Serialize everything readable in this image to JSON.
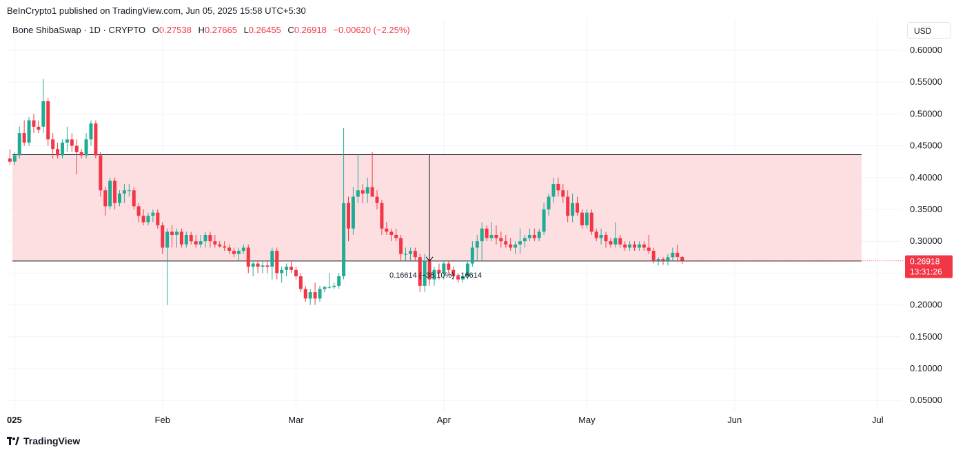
{
  "header": {
    "published": "BeInCrypto1 published on TradingView.com, Jun 05, 2025 15:58 UTC+5:30"
  },
  "legend": {
    "symbol": "Bone ShibaSwap · 1D · CRYPTO",
    "o_label": "O",
    "o_value": "0.27538",
    "h_label": "H",
    "h_value": "0.27665",
    "l_label": "L",
    "l_value": "0.26455",
    "c_label": "C",
    "c_value": "0.26918",
    "change": "−0.00620 (−2.25%)"
  },
  "currency_button": "USD",
  "footer": {
    "brand": "TradingView"
  },
  "price_tag": {
    "value": "0.26918",
    "countdown": "13:31:26"
  },
  "measure_label": "0.16614 (−38.10%) −16614",
  "colors": {
    "up": "#22ab94",
    "down": "#f23645",
    "zone": "#fddfe2",
    "grid": "#f0f3fa"
  },
  "chart_data": {
    "type": "candlestick",
    "title": "Bone ShibaSwap · 1D · CRYPTO",
    "ylim": [
      0.05,
      0.6
    ],
    "y_ticks": [
      "0.60000",
      "0.55000",
      "0.50000",
      "0.45000",
      "0.40000",
      "0.35000",
      "0.30000",
      "0.25000",
      "0.20000",
      "0.15000",
      "0.10000",
      "0.05000"
    ],
    "y_tick_values": [
      0.6,
      0.55,
      0.5,
      0.45,
      0.4,
      0.35,
      0.3,
      0.25,
      0.2,
      0.15,
      0.1,
      0.05
    ],
    "x_ticks": [
      "025",
      "Feb",
      "Mar",
      "Apr",
      "May",
      "Jun",
      "Jul"
    ],
    "x_tick_days": [
      1,
      32,
      60,
      91,
      121,
      152,
      182
    ],
    "zone": {
      "top": 0.436,
      "bottom": 0.269,
      "start_day": 0,
      "end_day": 177
    },
    "measure": {
      "day": 88,
      "from": 0.436,
      "to": 0.269
    },
    "last_price": 0.26918,
    "candles": [
      [
        0,
        0.43,
        0.445,
        0.42,
        0.425
      ],
      [
        1,
        0.425,
        0.44,
        0.42,
        0.435
      ],
      [
        2,
        0.435,
        0.48,
        0.43,
        0.47
      ],
      [
        3,
        0.47,
        0.49,
        0.45,
        0.455
      ],
      [
        4,
        0.455,
        0.495,
        0.45,
        0.49
      ],
      [
        5,
        0.49,
        0.5,
        0.47,
        0.48
      ],
      [
        6,
        0.48,
        0.49,
        0.47,
        0.475
      ],
      [
        7,
        0.48,
        0.555,
        0.47,
        0.52
      ],
      [
        8,
        0.52,
        0.525,
        0.45,
        0.46
      ],
      [
        9,
        0.46,
        0.47,
        0.43,
        0.445
      ],
      [
        10,
        0.445,
        0.455,
        0.43,
        0.435
      ],
      [
        11,
        0.435,
        0.46,
        0.43,
        0.455
      ],
      [
        12,
        0.455,
        0.48,
        0.44,
        0.46
      ],
      [
        13,
        0.46,
        0.47,
        0.44,
        0.45
      ],
      [
        14,
        0.45,
        0.46,
        0.405,
        0.44
      ],
      [
        15,
        0.44,
        0.445,
        0.43,
        0.435
      ],
      [
        16,
        0.435,
        0.47,
        0.43,
        0.46
      ],
      [
        17,
        0.46,
        0.49,
        0.45,
        0.485
      ],
      [
        18,
        0.485,
        0.49,
        0.43,
        0.435
      ],
      [
        19,
        0.435,
        0.44,
        0.37,
        0.38
      ],
      [
        20,
        0.38,
        0.385,
        0.34,
        0.355
      ],
      [
        21,
        0.355,
        0.4,
        0.35,
        0.395
      ],
      [
        22,
        0.395,
        0.4,
        0.35,
        0.36
      ],
      [
        23,
        0.36,
        0.38,
        0.355,
        0.375
      ],
      [
        24,
        0.375,
        0.39,
        0.36,
        0.38
      ],
      [
        25,
        0.38,
        0.39,
        0.37,
        0.38
      ],
      [
        26,
        0.38,
        0.385,
        0.35,
        0.355
      ],
      [
        27,
        0.355,
        0.36,
        0.33,
        0.34
      ],
      [
        28,
        0.34,
        0.35,
        0.325,
        0.33
      ],
      [
        29,
        0.33,
        0.345,
        0.325,
        0.34
      ],
      [
        30,
        0.34,
        0.35,
        0.33,
        0.345
      ],
      [
        31,
        0.345,
        0.35,
        0.32,
        0.325
      ],
      [
        32,
        0.325,
        0.33,
        0.28,
        0.29
      ],
      [
        33,
        0.29,
        0.32,
        0.2,
        0.315
      ],
      [
        34,
        0.315,
        0.325,
        0.29,
        0.31
      ],
      [
        35,
        0.31,
        0.32,
        0.29,
        0.315
      ],
      [
        36,
        0.315,
        0.32,
        0.29,
        0.295
      ],
      [
        37,
        0.295,
        0.315,
        0.29,
        0.31
      ],
      [
        38,
        0.31,
        0.315,
        0.295,
        0.3
      ],
      [
        39,
        0.3,
        0.31,
        0.29,
        0.295
      ],
      [
        40,
        0.295,
        0.31,
        0.29,
        0.3
      ],
      [
        41,
        0.3,
        0.315,
        0.29,
        0.31
      ],
      [
        42,
        0.31,
        0.315,
        0.29,
        0.3
      ],
      [
        43,
        0.3,
        0.31,
        0.29,
        0.295
      ],
      [
        44,
        0.295,
        0.3,
        0.29,
        0.292
      ],
      [
        45,
        0.292,
        0.3,
        0.285,
        0.29
      ],
      [
        46,
        0.29,
        0.295,
        0.28,
        0.285
      ],
      [
        47,
        0.285,
        0.29,
        0.275,
        0.28
      ],
      [
        48,
        0.28,
        0.29,
        0.27,
        0.285
      ],
      [
        49,
        0.285,
        0.295,
        0.28,
        0.29
      ],
      [
        50,
        0.29,
        0.295,
        0.25,
        0.26
      ],
      [
        51,
        0.26,
        0.27,
        0.245,
        0.265
      ],
      [
        52,
        0.265,
        0.27,
        0.25,
        0.26
      ],
      [
        53,
        0.26,
        0.27,
        0.25,
        0.262
      ],
      [
        54,
        0.262,
        0.27,
        0.25,
        0.26
      ],
      [
        55,
        0.26,
        0.29,
        0.24,
        0.285
      ],
      [
        56,
        0.285,
        0.29,
        0.24,
        0.25
      ],
      [
        57,
        0.25,
        0.26,
        0.235,
        0.255
      ],
      [
        58,
        0.255,
        0.265,
        0.245,
        0.26
      ],
      [
        59,
        0.26,
        0.27,
        0.25,
        0.255
      ],
      [
        60,
        0.255,
        0.26,
        0.24,
        0.245
      ],
      [
        61,
        0.245,
        0.25,
        0.22,
        0.225
      ],
      [
        62,
        0.225,
        0.23,
        0.205,
        0.21
      ],
      [
        63,
        0.21,
        0.225,
        0.2,
        0.22
      ],
      [
        64,
        0.22,
        0.235,
        0.2,
        0.21
      ],
      [
        65,
        0.21,
        0.23,
        0.205,
        0.225
      ],
      [
        66,
        0.225,
        0.23,
        0.22,
        0.228
      ],
      [
        67,
        0.228,
        0.25,
        0.225,
        0.228
      ],
      [
        68,
        0.228,
        0.235,
        0.225,
        0.23
      ],
      [
        69,
        0.23,
        0.25,
        0.225,
        0.245
      ],
      [
        70,
        0.245,
        0.478,
        0.24,
        0.36
      ],
      [
        71,
        0.36,
        0.37,
        0.3,
        0.32
      ],
      [
        72,
        0.32,
        0.385,
        0.31,
        0.37
      ],
      [
        73,
        0.37,
        0.436,
        0.36,
        0.38
      ],
      [
        74,
        0.38,
        0.39,
        0.36,
        0.375
      ],
      [
        75,
        0.375,
        0.4,
        0.36,
        0.385
      ],
      [
        76,
        0.385,
        0.44,
        0.37,
        0.37
      ],
      [
        77,
        0.37,
        0.38,
        0.35,
        0.36
      ],
      [
        78,
        0.36,
        0.365,
        0.31,
        0.32
      ],
      [
        79,
        0.32,
        0.33,
        0.31,
        0.315
      ],
      [
        80,
        0.315,
        0.32,
        0.3,
        0.31
      ],
      [
        81,
        0.31,
        0.32,
        0.3,
        0.305
      ],
      [
        82,
        0.305,
        0.31,
        0.27,
        0.28
      ],
      [
        83,
        0.28,
        0.29,
        0.27,
        0.28
      ],
      [
        84,
        0.28,
        0.29,
        0.27,
        0.285
      ],
      [
        85,
        0.285,
        0.29,
        0.27,
        0.275
      ],
      [
        86,
        0.275,
        0.28,
        0.22,
        0.23
      ],
      [
        87,
        0.23,
        0.28,
        0.22,
        0.27
      ],
      [
        88,
        0.27,
        0.28,
        0.23,
        0.24
      ],
      [
        89,
        0.24,
        0.26,
        0.23,
        0.255
      ],
      [
        90,
        0.255,
        0.265,
        0.24,
        0.25
      ],
      [
        91,
        0.25,
        0.27,
        0.24,
        0.265
      ],
      [
        92,
        0.265,
        0.27,
        0.25,
        0.255
      ],
      [
        93,
        0.255,
        0.26,
        0.24,
        0.245
      ],
      [
        94,
        0.245,
        0.25,
        0.235,
        0.24
      ],
      [
        95,
        0.24,
        0.25,
        0.235,
        0.245
      ],
      [
        96,
        0.245,
        0.27,
        0.24,
        0.265
      ],
      [
        97,
        0.265,
        0.3,
        0.26,
        0.29
      ],
      [
        98,
        0.29,
        0.31,
        0.27,
        0.3
      ],
      [
        99,
        0.3,
        0.33,
        0.27,
        0.32
      ],
      [
        100,
        0.32,
        0.325,
        0.3,
        0.305
      ],
      [
        101,
        0.305,
        0.33,
        0.3,
        0.31
      ],
      [
        102,
        0.31,
        0.325,
        0.295,
        0.305
      ],
      [
        103,
        0.305,
        0.315,
        0.29,
        0.3
      ],
      [
        104,
        0.3,
        0.31,
        0.29,
        0.295
      ],
      [
        105,
        0.295,
        0.305,
        0.285,
        0.29
      ],
      [
        106,
        0.29,
        0.3,
        0.28,
        0.295
      ],
      [
        107,
        0.295,
        0.32,
        0.28,
        0.3
      ],
      [
        108,
        0.3,
        0.31,
        0.29,
        0.305
      ],
      [
        109,
        0.305,
        0.32,
        0.3,
        0.31
      ],
      [
        110,
        0.31,
        0.32,
        0.3,
        0.305
      ],
      [
        111,
        0.305,
        0.32,
        0.3,
        0.315
      ],
      [
        112,
        0.315,
        0.36,
        0.31,
        0.35
      ],
      [
        113,
        0.35,
        0.375,
        0.34,
        0.37
      ],
      [
        114,
        0.37,
        0.4,
        0.36,
        0.39
      ],
      [
        115,
        0.39,
        0.4,
        0.37,
        0.38
      ],
      [
        116,
        0.38,
        0.39,
        0.36,
        0.37
      ],
      [
        117,
        0.37,
        0.38,
        0.33,
        0.34
      ],
      [
        118,
        0.34,
        0.375,
        0.33,
        0.36
      ],
      [
        119,
        0.36,
        0.37,
        0.34,
        0.345
      ],
      [
        120,
        0.345,
        0.35,
        0.32,
        0.325
      ],
      [
        121,
        0.325,
        0.35,
        0.32,
        0.345
      ],
      [
        122,
        0.345,
        0.35,
        0.31,
        0.315
      ],
      [
        123,
        0.315,
        0.32,
        0.3,
        0.305
      ],
      [
        124,
        0.305,
        0.32,
        0.295,
        0.31
      ],
      [
        125,
        0.31,
        0.315,
        0.29,
        0.3
      ],
      [
        126,
        0.3,
        0.305,
        0.29,
        0.295
      ],
      [
        127,
        0.295,
        0.33,
        0.29,
        0.305
      ],
      [
        128,
        0.305,
        0.31,
        0.29,
        0.295
      ],
      [
        129,
        0.295,
        0.3,
        0.285,
        0.29
      ],
      [
        130,
        0.29,
        0.3,
        0.285,
        0.295
      ],
      [
        131,
        0.295,
        0.3,
        0.285,
        0.29
      ],
      [
        132,
        0.29,
        0.3,
        0.285,
        0.295
      ],
      [
        133,
        0.295,
        0.3,
        0.285,
        0.29
      ],
      [
        134,
        0.29,
        0.31,
        0.28,
        0.285
      ],
      [
        135,
        0.285,
        0.29,
        0.265,
        0.27
      ],
      [
        136,
        0.27,
        0.275,
        0.262,
        0.272
      ],
      [
        137,
        0.272,
        0.275,
        0.263,
        0.27
      ],
      [
        138,
        0.27,
        0.28,
        0.262,
        0.275
      ],
      [
        139,
        0.275,
        0.29,
        0.27,
        0.282
      ],
      [
        140,
        0.282,
        0.295,
        0.268,
        0.27538
      ],
      [
        141,
        0.27538,
        0.27665,
        0.26455,
        0.26918
      ]
    ]
  }
}
